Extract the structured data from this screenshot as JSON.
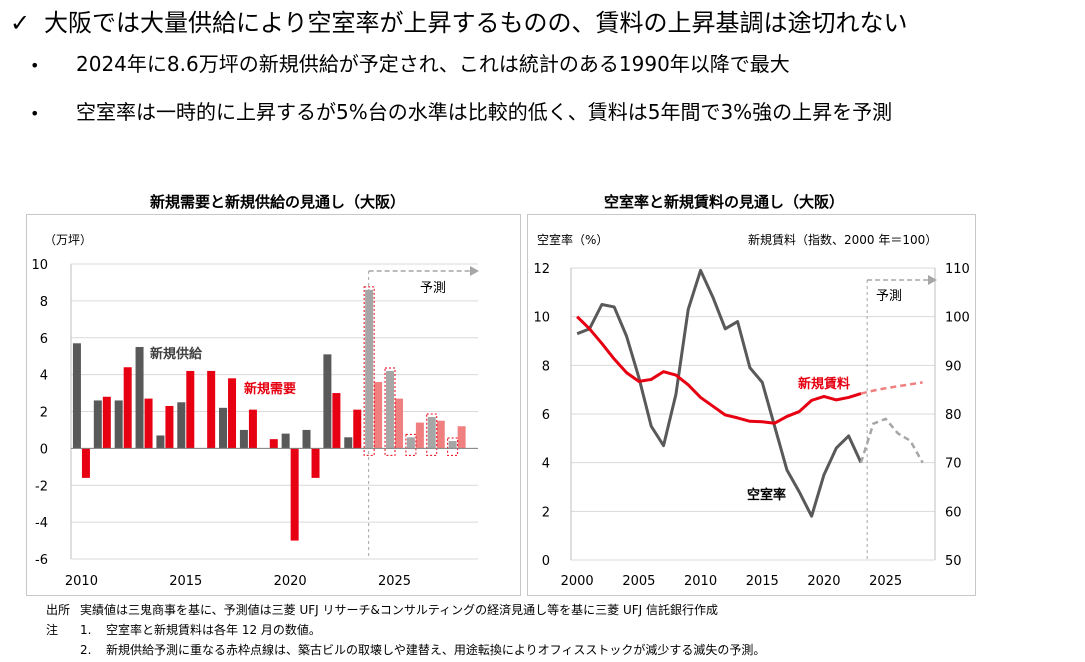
{
  "heading": {
    "check": "✓",
    "text": "大阪では大量供給により空室率が上昇するものの、賃料の上昇基調は途切れない"
  },
  "bullets": [
    {
      "dot": "•",
      "text": "2024年に8.6万坪の新規供給が予定され、これは統計のある1990年以降で最大"
    },
    {
      "dot": "•",
      "text": "空室率は一時的に上昇するが5%台の水準は比較的低く、賃料は5年間で3%強の上昇を予測"
    }
  ],
  "chart_data": [
    {
      "type": "bar",
      "title": "新規需要と新規供給の見通し（大阪）",
      "unit_label": "（万坪）",
      "ylim": [
        -6,
        10
      ],
      "yticks": [
        -6,
        -4,
        -2,
        0,
        2,
        4,
        6,
        8,
        10
      ],
      "xlim": [
        2009.5,
        2029
      ],
      "xticks": [
        2010,
        2015,
        2020,
        2025
      ],
      "forecast_start": 2024,
      "forecast_label": "予測",
      "grid": true,
      "series": [
        {
          "name": "新規供給",
          "color": "#595959",
          "forecast_color": "#a6a6a6",
          "x": [
            2010,
            2011,
            2012,
            2013,
            2014,
            2015,
            2016,
            2017,
            2018,
            2019,
            2020,
            2021,
            2022,
            2023,
            2024,
            2025,
            2026,
            2027,
            2028
          ],
          "values": [
            5.7,
            2.6,
            2.6,
            5.5,
            0.7,
            2.5,
            0,
            2.2,
            1.0,
            0,
            0.8,
            1.0,
            5.1,
            0.6,
            8.6,
            4.2,
            0.6,
            1.7,
            0.4
          ]
        },
        {
          "name": "新規需要",
          "color": "#e60012",
          "forecast_color": "#f08080",
          "x": [
            2010,
            2011,
            2012,
            2013,
            2014,
            2015,
            2016,
            2017,
            2018,
            2019,
            2020,
            2021,
            2022,
            2023,
            2024,
            2025,
            2026,
            2027,
            2028
          ],
          "values": [
            -1.6,
            2.8,
            4.4,
            2.7,
            2.3,
            4.2,
            4.2,
            3.8,
            2.1,
            0.5,
            -5.0,
            -1.6,
            3.0,
            2.1,
            3.6,
            2.7,
            1.4,
            1.5,
            1.2
          ]
        }
      ],
      "loss_color": "#e60012"
    },
    {
      "type": "line",
      "title": "空室率と新規賃料の見通し（大阪）",
      "left_axis_label": "空室率（%）",
      "right_axis_label": "新規賃料（指数、2000 年＝100）",
      "ylim_left": [
        0,
        12
      ],
      "yticks_left": [
        0,
        2,
        4,
        6,
        8,
        10,
        12
      ],
      "ylim_right": [
        50,
        110
      ],
      "yticks_right": [
        50,
        60,
        70,
        80,
        90,
        100,
        110
      ],
      "xlim": [
        1999.5,
        2029
      ],
      "xticks": [
        2000,
        2005,
        2010,
        2015,
        2020,
        2025
      ],
      "forecast_start": 2023.5,
      "forecast_label": "予測",
      "grid": true,
      "series": [
        {
          "name": "空室率",
          "axis": "left",
          "color": "#595959",
          "x": [
            2000,
            2001,
            2002,
            2003,
            2004,
            2005,
            2006,
            2007,
            2008,
            2009,
            2010,
            2011,
            2012,
            2013,
            2014,
            2015,
            2016,
            2017,
            2018,
            2019,
            2020,
            2021,
            2022,
            2023
          ],
          "values": [
            9.3,
            9.5,
            10.5,
            10.4,
            9.2,
            7.5,
            5.5,
            4.7,
            6.8,
            10.3,
            11.9,
            10.8,
            9.5,
            9.8,
            7.9,
            7.3,
            5.5,
            3.7,
            2.8,
            1.8,
            3.5,
            4.6,
            5.1,
            4.0
          ],
          "forecast_x": [
            2023,
            2024,
            2025,
            2026,
            2027,
            2028
          ],
          "forecast_values": [
            4.0,
            5.6,
            5.8,
            5.2,
            4.9,
            4.0
          ]
        },
        {
          "name": "新規賃料",
          "axis": "right",
          "color": "#e60012",
          "x": [
            2000,
            2001,
            2002,
            2003,
            2004,
            2005,
            2006,
            2007,
            2008,
            2009,
            2010,
            2011,
            2012,
            2013,
            2014,
            2015,
            2016,
            2017,
            2018,
            2019,
            2020,
            2021,
            2022,
            2023
          ],
          "values": [
            100,
            97.5,
            94.5,
            91.3,
            88.5,
            86.7,
            87.1,
            88.7,
            88,
            86,
            83.4,
            81.6,
            79.8,
            79.2,
            78.5,
            78.4,
            78.1,
            79.5,
            80.5,
            82.8,
            83.6,
            82.9,
            83.4,
            84.2
          ],
          "forecast_x": [
            2023,
            2024,
            2025,
            2026,
            2027,
            2028
          ],
          "forecast_values": [
            84.2,
            84.8,
            85.3,
            85.7,
            86.1,
            86.5
          ]
        }
      ]
    }
  ],
  "notes": {
    "source_label": "出所",
    "source_text": "実績値は三鬼商事を基に、予測値は三菱 UFJ リサーチ&コンサルティングの経済見通し等を基に三菱 UFJ 信託銀行作成",
    "notes_label": "注",
    "items": [
      {
        "num": "1.",
        "text": "空室率と新規賃料は各年 12 月の数値。"
      },
      {
        "num": "2.",
        "text": "新規供給予測に重なる赤枠点線は、築古ビルの取壊しや建替え、用途転換によりオフィスストックが減少する滅失の予測。"
      }
    ]
  }
}
